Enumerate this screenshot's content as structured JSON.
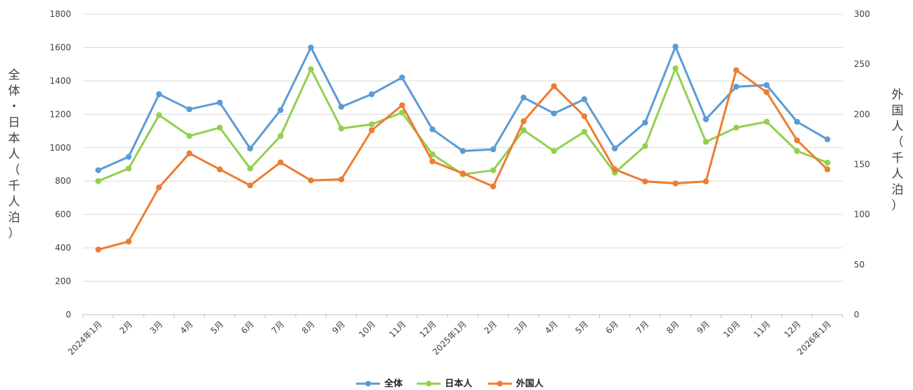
{
  "chart_data": {
    "type": "line",
    "categories": [
      "2024年1月",
      "2月",
      "3月",
      "4月",
      "5月",
      "6月",
      "7月",
      "8月",
      "9月",
      "10月",
      "11月",
      "12月",
      "2025年1月",
      "2月",
      "3月",
      "4月",
      "5月",
      "6月",
      "7月",
      "8月",
      "9月",
      "10月",
      "11月",
      "12月",
      "2026年1月"
    ],
    "series": [
      {
        "name": "全体",
        "axis": "left",
        "color": "#5B9BD5",
        "values": [
          865,
          945,
          1320,
          1230,
          1270,
          995,
          1225,
          1600,
          1245,
          1320,
          1420,
          1110,
          980,
          990,
          1300,
          1205,
          1290,
          995,
          1150,
          1605,
          1170,
          1365,
          1375,
          1155,
          1050
        ]
      },
      {
        "name": "日本人",
        "axis": "left",
        "color": "#92D050",
        "values": [
          800,
          875,
          1195,
          1070,
          1120,
          875,
          1070,
          1470,
          1115,
          1140,
          1210,
          960,
          840,
          865,
          1105,
          980,
          1095,
          850,
          1010,
          1475,
          1035,
          1120,
          1155,
          980,
          910
        ]
      },
      {
        "name": "外国人",
        "axis": "right",
        "color": "#ED7D31",
        "values": [
          65,
          73,
          127,
          161,
          145,
          129,
          152,
          134,
          135,
          184,
          209,
          153,
          141,
          128,
          193,
          228,
          198,
          145,
          133,
          131,
          133,
          244,
          222,
          174,
          145
        ]
      }
    ],
    "y_left": {
      "label": "全体・日本人（千人泊）",
      "ylim": [
        0,
        1800
      ],
      "ticks": [
        0,
        200,
        400,
        600,
        800,
        1000,
        1200,
        1400,
        1600,
        1800
      ]
    },
    "y_right": {
      "label": "外国人（千人泊）",
      "ylim": [
        0,
        300
      ],
      "ticks": [
        0,
        50,
        100,
        150,
        200,
        250,
        300
      ]
    },
    "grid": true,
    "legend": "bottom"
  }
}
